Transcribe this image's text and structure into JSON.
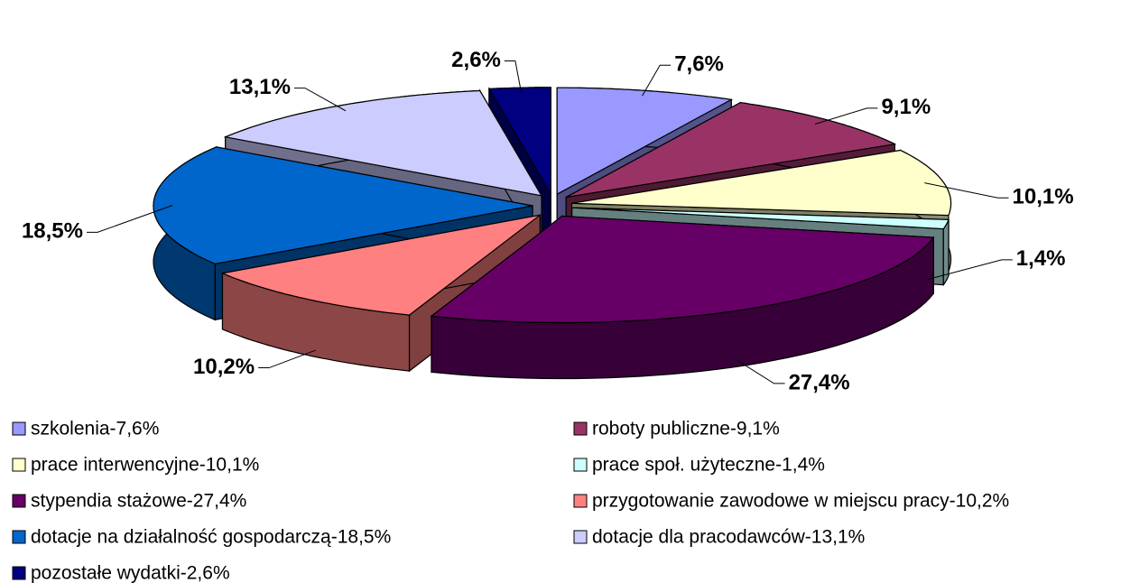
{
  "chart_data": {
    "type": "pie",
    "categories": [
      "szkolenia-7,6%",
      "roboty publiczne-9,1%",
      "prace interwencyjne-10,1%",
      "prace społ. użyteczne-1,4%",
      "stypendia stażowe-27,4%",
      "przygotowanie zawodowe w miejscu pracy-10,2%",
      "dotacje na działalność gospodarczą-18,5%",
      "dotacje dla pracodawców-13,1%",
      "pozostałe wydatki-2,6%"
    ],
    "values": [
      7.6,
      9.1,
      10.1,
      1.4,
      27.4,
      10.2,
      18.5,
      13.1,
      2.6
    ],
    "value_labels": [
      "7,6%",
      "9,1%",
      "10,1%",
      "1,4%",
      "27,4%",
      "10,2%",
      "18,5%",
      "13,1%",
      "2,6%"
    ],
    "colors": [
      "#9999ff",
      "#993366",
      "#ffffcc",
      "#ccffff",
      "#660066",
      "#ff8080",
      "#0066cc",
      "#ccccff",
      "#000080"
    ],
    "legend": "bottom"
  }
}
